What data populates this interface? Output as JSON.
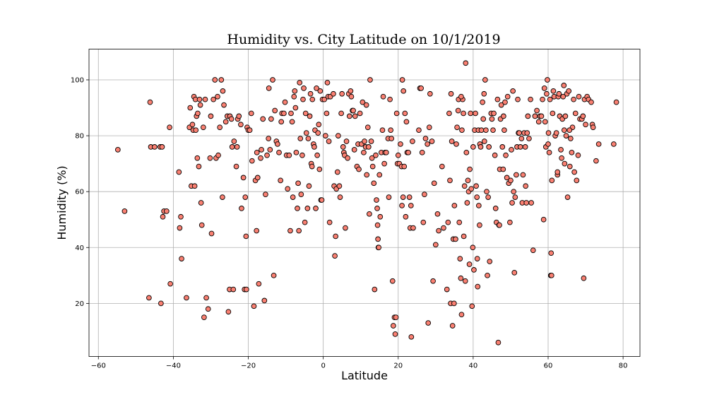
{
  "chart_data": {
    "type": "scatter",
    "title": "Humidity vs. City Latitude on 10/1/2019",
    "xlabel": "Latitude",
    "ylabel": "Humidity (%)",
    "xlim": [
      -62.5,
      84.5
    ],
    "ylim": [
      1,
      111
    ],
    "xticks": [
      -60,
      -40,
      -20,
      0,
      20,
      40,
      60,
      80
    ],
    "yticks": [
      20,
      40,
      60,
      80,
      100
    ],
    "xtick_labels": [
      "−60",
      "−40",
      "−20",
      "0",
      "20",
      "40",
      "60",
      "80"
    ],
    "ytick_labels": [
      "20",
      "40",
      "60",
      "80",
      "100"
    ],
    "grid": true,
    "marker_color": "#fa8072",
    "marker_edge_color": "#000000",
    "points": [
      [
        -54.8,
        75
      ],
      [
        -53,
        53
      ],
      [
        -46.2,
        92
      ],
      [
        -46,
        76
      ],
      [
        -45,
        76
      ],
      [
        -43.5,
        76
      ],
      [
        -43,
        76
      ],
      [
        -42.8,
        51
      ],
      [
        -42.5,
        53
      ],
      [
        -41.8,
        53
      ],
      [
        -41,
        83
      ],
      [
        -40.8,
        27
      ],
      [
        -46.5,
        22
      ],
      [
        -43.3,
        20
      ],
      [
        -38.5,
        67
      ],
      [
        -38.3,
        47
      ],
      [
        -38,
        51
      ],
      [
        -37.8,
        36
      ],
      [
        -36.5,
        22
      ],
      [
        -35.7,
        83
      ],
      [
        -35.5,
        90
      ],
      [
        -35.2,
        62
      ],
      [
        -34.9,
        84
      ],
      [
        -34.7,
        82
      ],
      [
        -34.5,
        94
      ],
      [
        -34.3,
        62
      ],
      [
        -34.1,
        93
      ],
      [
        -34,
        82
      ],
      [
        -33.8,
        87
      ],
      [
        -33.6,
        72
      ],
      [
        -33.5,
        88
      ],
      [
        -33.2,
        69
      ],
      [
        -33,
        93
      ],
      [
        -32.8,
        91
      ],
      [
        -32.6,
        56
      ],
      [
        -32.4,
        48
      ],
      [
        -32,
        83
      ],
      [
        -31.8,
        15
      ],
      [
        -31.5,
        93
      ],
      [
        -31.2,
        22
      ],
      [
        -30.7,
        18
      ],
      [
        -30.2,
        72
      ],
      [
        -30,
        87
      ],
      [
        -29.8,
        45
      ],
      [
        -29.3,
        93
      ],
      [
        -28.9,
        100
      ],
      [
        -28.6,
        72
      ],
      [
        -28.2,
        94
      ],
      [
        -28,
        73
      ],
      [
        -27.6,
        83
      ],
      [
        -27.2,
        100
      ],
      [
        -26.9,
        58
      ],
      [
        -26.8,
        96
      ],
      [
        -26.5,
        91
      ],
      [
        -26,
        85
      ],
      [
        -25.6,
        87
      ],
      [
        -25.3,
        17
      ],
      [
        -25,
        25
      ],
      [
        -24.9,
        87
      ],
      [
        -24.5,
        86
      ],
      [
        -24.3,
        76
      ],
      [
        -24,
        25
      ],
      [
        -23.8,
        78
      ],
      [
        -23.2,
        69
      ],
      [
        -23,
        76
      ],
      [
        -22.8,
        86
      ],
      [
        -22.5,
        87
      ],
      [
        -22,
        84
      ],
      [
        -21.8,
        54
      ],
      [
        -21.3,
        65
      ],
      [
        -21,
        25
      ],
      [
        -20.8,
        58
      ],
      [
        -20.5,
        25
      ],
      [
        -20.6,
        44
      ],
      [
        -20.3,
        83
      ],
      [
        -20,
        82
      ],
      [
        -19.6,
        82
      ],
      [
        -19.2,
        88
      ],
      [
        -19,
        71
      ],
      [
        -18.5,
        19
      ],
      [
        -18.1,
        64
      ],
      [
        -17.8,
        46
      ],
      [
        -17.7,
        74
      ],
      [
        -17.5,
        65
      ],
      [
        -17.2,
        27
      ],
      [
        -16.7,
        72
      ],
      [
        -16.5,
        75
      ],
      [
        -16.1,
        86
      ],
      [
        -15.7,
        21
      ],
      [
        -15.4,
        59
      ],
      [
        -15,
        73
      ],
      [
        -14.6,
        79
      ],
      [
        -14.5,
        97
      ],
      [
        -14.2,
        75
      ],
      [
        -13.9,
        86
      ],
      [
        -13.5,
        100
      ],
      [
        -13.2,
        30
      ],
      [
        -12.9,
        89
      ],
      [
        -12.5,
        78
      ],
      [
        -12.2,
        77
      ],
      [
        -11.8,
        74
      ],
      [
        -11.4,
        64
      ],
      [
        -11.2,
        85
      ],
      [
        -11,
        88
      ],
      [
        -10.5,
        88
      ],
      [
        -10.2,
        92
      ],
      [
        -9.8,
        73
      ],
      [
        -9.5,
        61
      ],
      [
        -9.1,
        73
      ],
      [
        -8.8,
        46
      ],
      [
        -8.6,
        88
      ],
      [
        -8.3,
        85
      ],
      [
        -8.1,
        58
      ],
      [
        -7.8,
        94
      ],
      [
        -7.6,
        96
      ],
      [
        -7.4,
        90
      ],
      [
        -7.2,
        74
      ],
      [
        -6.9,
        54
      ],
      [
        -6.7,
        63
      ],
      [
        -6.5,
        46
      ],
      [
        -6.3,
        99
      ],
      [
        -6.1,
        79
      ],
      [
        -5.9,
        59
      ],
      [
        -5.6,
        73
      ],
      [
        -5.4,
        93
      ],
      [
        -5.2,
        97
      ],
      [
        -4.9,
        49
      ],
      [
        -4.7,
        88
      ],
      [
        -4.5,
        81
      ],
      [
        -4.2,
        54
      ],
      [
        -4,
        79
      ],
      [
        -3.8,
        62
      ],
      [
        -3.6,
        87
      ],
      [
        -3.4,
        95
      ],
      [
        -3.2,
        70
      ],
      [
        -3,
        69
      ],
      [
        -2.9,
        93
      ],
      [
        -2.6,
        77
      ],
      [
        -2.4,
        76
      ],
      [
        -2.2,
        82
      ],
      [
        -2,
        54
      ],
      [
        -1.8,
        97
      ],
      [
        -1.6,
        73
      ],
      [
        -1.4,
        81
      ],
      [
        -1.2,
        84
      ],
      [
        -1,
        68
      ],
      [
        -0.8,
        96
      ],
      [
        -0.6,
        57
      ],
      [
        -0.4,
        57
      ],
      [
        -0.2,
        93
      ],
      [
        0.3,
        93
      ],
      [
        0.6,
        80
      ],
      [
        0.9,
        88
      ],
      [
        1.1,
        99
      ],
      [
        1.3,
        94
      ],
      [
        1.5,
        78
      ],
      [
        1.7,
        49
      ],
      [
        1.9,
        94
      ],
      [
        2.7,
        95
      ],
      [
        2.9,
        62
      ],
      [
        3.1,
        37
      ],
      [
        3.3,
        44
      ],
      [
        3.5,
        61
      ],
      [
        3.8,
        67
      ],
      [
        4,
        80
      ],
      [
        4.3,
        62
      ],
      [
        4.5,
        58
      ],
      [
        4.8,
        88
      ],
      [
        5,
        95
      ],
      [
        5.3,
        76
      ],
      [
        5.5,
        74
      ],
      [
        5.7,
        73
      ],
      [
        5.9,
        47
      ],
      [
        6.2,
        78
      ],
      [
        6.5,
        72
      ],
      [
        6.8,
        95
      ],
      [
        7,
        87
      ],
      [
        7.3,
        96
      ],
      [
        7.5,
        94
      ],
      [
        7.8,
        89
      ],
      [
        8,
        89
      ],
      [
        8.3,
        75
      ],
      [
        8.5,
        87
      ],
      [
        9,
        69
      ],
      [
        9.3,
        77
      ],
      [
        9.5,
        68
      ],
      [
        9.8,
        88
      ],
      [
        10.2,
        77
      ],
      [
        10.5,
        92
      ],
      [
        10.8,
        74
      ],
      [
        11,
        78
      ],
      [
        11.3,
        76
      ],
      [
        11.5,
        91
      ],
      [
        11.6,
        66
      ],
      [
        11.9,
        83
      ],
      [
        12.1,
        76
      ],
      [
        12.3,
        52
      ],
      [
        12.5,
        100
      ],
      [
        12.8,
        78
      ],
      [
        13,
        72
      ],
      [
        13.2,
        69
      ],
      [
        13.5,
        63
      ],
      [
        13.7,
        25
      ],
      [
        14,
        73
      ],
      [
        14.2,
        57
      ],
      [
        14.4,
        54
      ],
      [
        14.5,
        48
      ],
      [
        14.6,
        43
      ],
      [
        14.7,
        40
      ],
      [
        14.8,
        40
      ],
      [
        15,
        66
      ],
      [
        15.2,
        51
      ],
      [
        15.5,
        74
      ],
      [
        15.8,
        82
      ],
      [
        16,
        94
      ],
      [
        16.3,
        70
      ],
      [
        16.5,
        74
      ],
      [
        16.8,
        74
      ],
      [
        17.3,
        79
      ],
      [
        17.5,
        58
      ],
      [
        17.8,
        93
      ],
      [
        18,
        82
      ],
      [
        18.2,
        79
      ],
      [
        18.5,
        28
      ],
      [
        18.7,
        12
      ],
      [
        19,
        15
      ],
      [
        19.2,
        9
      ],
      [
        19.4,
        15
      ],
      [
        19.6,
        88
      ],
      [
        19.8,
        70
      ],
      [
        20,
        73
      ],
      [
        20.3,
        70
      ],
      [
        20.6,
        77
      ],
      [
        20.9,
        69
      ],
      [
        21.1,
        100
      ],
      [
        21.3,
        58
      ],
      [
        21.4,
        96
      ],
      [
        21.6,
        69
      ],
      [
        21.8,
        88
      ],
      [
        22,
        51
      ],
      [
        22.2,
        85
      ],
      [
        22.4,
        74
      ],
      [
        22.7,
        74
      ],
      [
        23,
        58
      ],
      [
        23.2,
        47
      ],
      [
        23.4,
        55
      ],
      [
        23.5,
        8
      ],
      [
        23.8,
        78
      ],
      [
        24,
        47
      ],
      [
        25.5,
        82
      ],
      [
        25.8,
        97
      ],
      [
        26.1,
        97
      ],
      [
        26.4,
        74
      ],
      [
        26.7,
        49
      ],
      [
        27,
        59
      ],
      [
        27.3,
        79
      ],
      [
        27.8,
        77
      ],
      [
        28,
        13
      ],
      [
        28.3,
        83
      ],
      [
        28.5,
        95
      ],
      [
        29,
        78
      ],
      [
        29.3,
        28
      ],
      [
        29.6,
        63
      ],
      [
        30,
        41
      ],
      [
        30.5,
        52
      ],
      [
        30.8,
        46
      ],
      [
        31.7,
        69
      ],
      [
        32.1,
        47
      ],
      [
        33,
        25
      ],
      [
        33.3,
        49
      ],
      [
        33.6,
        88
      ],
      [
        33.8,
        64
      ],
      [
        34,
        20
      ],
      [
        34.1,
        95
      ],
      [
        34.3,
        78
      ],
      [
        34.5,
        12
      ],
      [
        34.7,
        43
      ],
      [
        34.9,
        20
      ],
      [
        35,
        55
      ],
      [
        35.3,
        43
      ],
      [
        35.5,
        77
      ],
      [
        35.7,
        83
      ],
      [
        36,
        89
      ],
      [
        36.1,
        93
      ],
      [
        36.3,
        49
      ],
      [
        36.5,
        36
      ],
      [
        36.7,
        29
      ],
      [
        36.9,
        16
      ],
      [
        37,
        82
      ],
      [
        37.2,
        93
      ],
      [
        37.4,
        88
      ],
      [
        37.5,
        44
      ],
      [
        37.7,
        62
      ],
      [
        37.9,
        28
      ],
      [
        38,
        106
      ],
      [
        38.2,
        74
      ],
      [
        38.4,
        56
      ],
      [
        38.6,
        64
      ],
      [
        38.8,
        60
      ],
      [
        39,
        34
      ],
      [
        39.1,
        68
      ],
      [
        39.3,
        88
      ],
      [
        39.5,
        61
      ],
      [
        39.7,
        19
      ],
      [
        39.9,
        40
      ],
      [
        40,
        76
      ],
      [
        40.2,
        32
      ],
      [
        40.4,
        82
      ],
      [
        40.6,
        88
      ],
      [
        40.8,
        62
      ],
      [
        41,
        58
      ],
      [
        41.1,
        36
      ],
      [
        41.2,
        26
      ],
      [
        41.4,
        82
      ],
      [
        41.5,
        55
      ],
      [
        41.7,
        48
      ],
      [
        41.8,
        77
      ],
      [
        42,
        76
      ],
      [
        42.2,
        82
      ],
      [
        42.5,
        92
      ],
      [
        42.7,
        86
      ],
      [
        42.9,
        95
      ],
      [
        43,
        78
      ],
      [
        43.2,
        100
      ],
      [
        43.4,
        82
      ],
      [
        43.6,
        60
      ],
      [
        43.8,
        30
      ],
      [
        44,
        58
      ],
      [
        44.2,
        76
      ],
      [
        44.4,
        35
      ],
      [
        44.8,
        88
      ],
      [
        45,
        86
      ],
      [
        45.3,
        82
      ],
      [
        45.5,
        88
      ],
      [
        45.8,
        73
      ],
      [
        46,
        54
      ],
      [
        46.2,
        49
      ],
      [
        46.5,
        93
      ],
      [
        46.7,
        6
      ],
      [
        46.9,
        48
      ],
      [
        47.1,
        68
      ],
      [
        47.3,
        86
      ],
      [
        47.5,
        91
      ],
      [
        47.8,
        76
      ],
      [
        48,
        68
      ],
      [
        48.1,
        87
      ],
      [
        48.3,
        82
      ],
      [
        48.5,
        92
      ],
      [
        48.7,
        73
      ],
      [
        49,
        65
      ],
      [
        49.2,
        94
      ],
      [
        49.5,
        63
      ],
      [
        49.8,
        49
      ],
      [
        50,
        64
      ],
      [
        50.2,
        75
      ],
      [
        50.4,
        56
      ],
      [
        50.6,
        96
      ],
      [
        50.8,
        60
      ],
      [
        51,
        31
      ],
      [
        51.2,
        58
      ],
      [
        51.5,
        66
      ],
      [
        51.7,
        76
      ],
      [
        51.9,
        93
      ],
      [
        52.1,
        81
      ],
      [
        52.3,
        81
      ],
      [
        52.6,
        76
      ],
      [
        52.9,
        79
      ],
      [
        53.1,
        56
      ],
      [
        53.3,
        66
      ],
      [
        53.6,
        81
      ],
      [
        53.9,
        76
      ],
      [
        54,
        62
      ],
      [
        54.2,
        56
      ],
      [
        54.4,
        81
      ],
      [
        54.6,
        87
      ],
      [
        54.9,
        79
      ],
      [
        55.3,
        93
      ],
      [
        55.5,
        56
      ],
      [
        56,
        39
      ],
      [
        56.5,
        87
      ],
      [
        57,
        89
      ],
      [
        57.5,
        85
      ],
      [
        57.8,
        87
      ],
      [
        58.2,
        87
      ],
      [
        58.5,
        93
      ],
      [
        58.8,
        50
      ],
      [
        59,
        97
      ],
      [
        59.2,
        85
      ],
      [
        59.4,
        76
      ],
      [
        59.6,
        95
      ],
      [
        59.8,
        100
      ],
      [
        60,
        77
      ],
      [
        60.1,
        81
      ],
      [
        60.3,
        74
      ],
      [
        60.5,
        93
      ],
      [
        60.7,
        30
      ],
      [
        60.8,
        38
      ],
      [
        61,
        64
      ],
      [
        61.2,
        88
      ],
      [
        61.4,
        96
      ],
      [
        61.6,
        94
      ],
      [
        61.9,
        80
      ],
      [
        62.2,
        81
      ],
      [
        62.5,
        66
      ],
      [
        62.7,
        94
      ],
      [
        62.9,
        95
      ],
      [
        63.1,
        87
      ],
      [
        63.4,
        75
      ],
      [
        63.6,
        72
      ],
      [
        63.8,
        86
      ],
      [
        64,
        94
      ],
      [
        64.2,
        98
      ],
      [
        64.4,
        70
      ],
      [
        64.6,
        87
      ],
      [
        64.8,
        80
      ],
      [
        65,
        95
      ],
      [
        65.2,
        58
      ],
      [
        65.5,
        96
      ],
      [
        65.8,
        69
      ],
      [
        66,
        79
      ],
      [
        66.3,
        74
      ],
      [
        66.5,
        83
      ],
      [
        66.8,
        93
      ],
      [
        67,
        67
      ],
      [
        67.3,
        88
      ],
      [
        67.6,
        64
      ],
      [
        68,
        73
      ],
      [
        68.2,
        94
      ],
      [
        68.5,
        86
      ],
      [
        69,
        86
      ],
      [
        69.3,
        87
      ],
      [
        69.5,
        29
      ],
      [
        69.7,
        93
      ],
      [
        70,
        84
      ],
      [
        70.4,
        94
      ],
      [
        70.8,
        93
      ],
      [
        71.5,
        92
      ],
      [
        71.8,
        84
      ],
      [
        72,
        83
      ],
      [
        72.8,
        71
      ],
      [
        73.5,
        77
      ],
      [
        77.5,
        77
      ],
      [
        78.2,
        92
      ],
      [
        60.9,
        30
      ],
      [
        62.5,
        67
      ],
      [
        64.3,
        82
      ],
      [
        65.7,
        82
      ],
      [
        47,
        48
      ],
      [
        36.8,
        94
      ],
      [
        21,
        55
      ]
    ]
  }
}
